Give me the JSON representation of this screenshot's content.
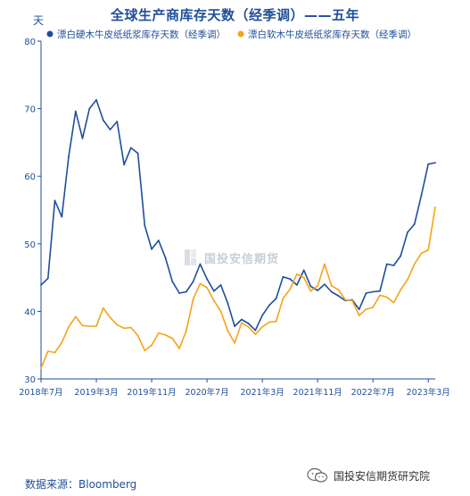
{
  "chart_data": {
    "type": "line",
    "title": "全球生产商库存天数（经季调）——五年",
    "ylabel": "天",
    "ylim": [
      30,
      80
    ],
    "yticks": [
      30,
      40,
      50,
      60,
      70,
      80
    ],
    "x_range": [
      "2018-07",
      "2023-04"
    ],
    "x_tick_labels": [
      "2018年7月",
      "2019年3月",
      "2019年11月",
      "2020年7月",
      "2021年3月",
      "2021年11月",
      "2022年7月",
      "2023年3月"
    ],
    "x_ticks": [
      "2018-07",
      "2019-03",
      "2019-11",
      "2020-07",
      "2021-03",
      "2021-11",
      "2022-07",
      "2023-03"
    ],
    "legend_position": "top",
    "grid": false,
    "x": [
      "2018-07",
      "2018-08",
      "2018-09",
      "2018-10",
      "2018-11",
      "2018-12",
      "2019-01",
      "2019-02",
      "2019-03",
      "2019-04",
      "2019-05",
      "2019-06",
      "2019-07",
      "2019-08",
      "2019-09",
      "2019-10",
      "2019-11",
      "2019-12",
      "2020-01",
      "2020-02",
      "2020-03",
      "2020-04",
      "2020-05",
      "2020-06",
      "2020-07",
      "2020-08",
      "2020-09",
      "2020-10",
      "2020-11",
      "2020-12",
      "2021-01",
      "2021-02",
      "2021-03",
      "2021-04",
      "2021-05",
      "2021-06",
      "2021-07",
      "2021-08",
      "2021-09",
      "2021-10",
      "2021-11",
      "2021-12",
      "2022-01",
      "2022-02",
      "2022-03",
      "2022-04",
      "2022-05",
      "2022-06",
      "2022-07",
      "2022-08",
      "2022-09",
      "2022-10",
      "2022-11",
      "2022-12",
      "2023-01",
      "2023-02",
      "2023-03",
      "2023-04"
    ],
    "series": [
      {
        "name": "漂白硬木牛皮纸纸浆库存天数（经季调）",
        "color": "#1f4e9c",
        "values": [
          43.9,
          44.9,
          56.4,
          54.0,
          62.9,
          69.6,
          65.6,
          70.0,
          71.3,
          68.3,
          66.9,
          68.1,
          61.7,
          64.2,
          63.4,
          52.7,
          49.2,
          50.5,
          47.9,
          44.4,
          42.7,
          42.9,
          44.4,
          47.0,
          44.8,
          43.0,
          43.9,
          41.2,
          37.8,
          38.8,
          38.2,
          37.2,
          39.4,
          40.9,
          41.9,
          45.1,
          44.8,
          43.9,
          46.1,
          43.7,
          43.1,
          44.0,
          42.9,
          42.3,
          41.6,
          41.7,
          40.3,
          42.7,
          42.9,
          43.0,
          47.0,
          46.8,
          48.2,
          51.7,
          52.9,
          57.2,
          61.8,
          62.0
        ]
      },
      {
        "name": "漂白软木牛皮纸纸浆库存天数（经季调）",
        "color": "#f5a31a",
        "values": [
          31.6,
          34.1,
          33.9,
          35.4,
          37.7,
          39.2,
          37.9,
          37.8,
          37.8,
          40.5,
          39.1,
          38.0,
          37.5,
          37.6,
          36.4,
          34.2,
          35.0,
          36.8,
          36.5,
          36.0,
          34.5,
          37.1,
          41.8,
          44.1,
          43.5,
          41.6,
          40.0,
          37.1,
          35.3,
          38.3,
          37.7,
          36.6,
          37.7,
          38.4,
          38.5,
          41.9,
          43.3,
          45.5,
          45.0,
          43.0,
          43.8,
          47.0,
          43.8,
          43.2,
          41.7,
          41.6,
          39.4,
          40.3,
          40.6,
          42.4,
          42.1,
          41.3,
          43.2,
          44.7,
          47.0,
          48.6,
          49.1,
          55.4
        ]
      }
    ]
  },
  "watermark": {
    "text": "国投安信期货"
  },
  "source": "数据来源：Bloomberg",
  "footer": {
    "brand": "国投安信期货研究院",
    "icon": "wechat-icon"
  }
}
